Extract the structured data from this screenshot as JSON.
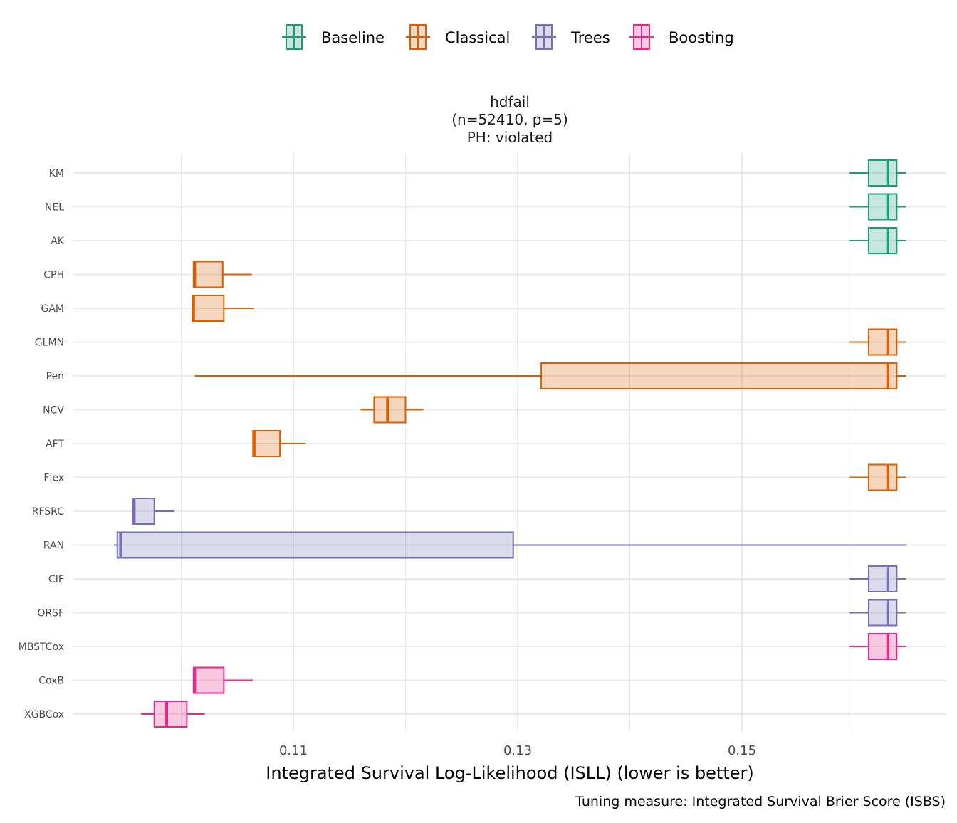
{
  "chart_data": {
    "type": "boxplot",
    "title_lines": [
      "hdfail",
      "(n=52410, p=5)",
      "PH: violated"
    ],
    "xlabel": "Integrated Survival Log-Likelihood (ISLL) (lower is better)",
    "caption": "Tuning measure: Integrated Survival Brier Score (ISBS)",
    "xlim": [
      0.0903,
      0.1681
    ],
    "x_ticks": [
      0.11,
      0.13,
      0.15
    ],
    "x_tick_labels": [
      "0.11",
      "0.13",
      "0.15"
    ],
    "x_minor_grid": [
      0.1,
      0.12,
      0.14,
      0.16
    ],
    "grid": true,
    "legend_position": "top",
    "groups": [
      {
        "name": "Baseline",
        "color": "#1B9E77"
      },
      {
        "name": "Classical",
        "color": "#D95F02"
      },
      {
        "name": "Trees",
        "color": "#7570B3"
      },
      {
        "name": "Boosting",
        "color": "#E7298A"
      }
    ],
    "series": [
      {
        "name": "KM",
        "group": "Baseline",
        "min": 0.1596,
        "q1": 0.1613,
        "median": 0.163,
        "q3": 0.1638,
        "max": 0.1646
      },
      {
        "name": "NEL",
        "group": "Baseline",
        "min": 0.1596,
        "q1": 0.1613,
        "median": 0.163,
        "q3": 0.1638,
        "max": 0.1646
      },
      {
        "name": "AK",
        "group": "Baseline",
        "min": 0.1596,
        "q1": 0.1613,
        "median": 0.163,
        "q3": 0.1638,
        "max": 0.1646
      },
      {
        "name": "CPH",
        "group": "Classical",
        "min": 0.1011,
        "q1": 0.1011,
        "median": 0.1012,
        "q3": 0.1037,
        "max": 0.1063
      },
      {
        "name": "GAM",
        "group": "Classical",
        "min": 0.101,
        "q1": 0.101,
        "median": 0.1011,
        "q3": 0.1038,
        "max": 0.1065
      },
      {
        "name": "GLMN",
        "group": "Classical",
        "min": 0.1596,
        "q1": 0.1613,
        "median": 0.163,
        "q3": 0.1638,
        "max": 0.1646
      },
      {
        "name": "Pen",
        "group": "Classical",
        "min": 0.1012,
        "q1": 0.1321,
        "median": 0.163,
        "q3": 0.1638,
        "max": 0.1646
      },
      {
        "name": "NCV",
        "group": "Classical",
        "min": 0.116,
        "q1": 0.1172,
        "median": 0.1184,
        "q3": 0.12,
        "max": 0.1216
      },
      {
        "name": "AFT",
        "group": "Classical",
        "min": 0.1064,
        "q1": 0.1064,
        "median": 0.1065,
        "q3": 0.1088,
        "max": 0.1111
      },
      {
        "name": "Flex",
        "group": "Classical",
        "min": 0.1596,
        "q1": 0.1613,
        "median": 0.163,
        "q3": 0.1638,
        "max": 0.1646
      },
      {
        "name": "RFSRC",
        "group": "Trees",
        "min": 0.0957,
        "q1": 0.0957,
        "median": 0.0958,
        "q3": 0.0976,
        "max": 0.0994
      },
      {
        "name": "RAN",
        "group": "Trees",
        "min": 0.094,
        "q1": 0.0943,
        "median": 0.0946,
        "q3": 0.1296,
        "max": 0.1647
      },
      {
        "name": "CIF",
        "group": "Trees",
        "min": 0.1596,
        "q1": 0.1613,
        "median": 0.163,
        "q3": 0.1638,
        "max": 0.1646
      },
      {
        "name": "ORSF",
        "group": "Trees",
        "min": 0.1596,
        "q1": 0.1613,
        "median": 0.163,
        "q3": 0.1638,
        "max": 0.1646
      },
      {
        "name": "MBSTCox",
        "group": "Boosting",
        "min": 0.1596,
        "q1": 0.1613,
        "median": 0.163,
        "q3": 0.1638,
        "max": 0.1646
      },
      {
        "name": "CoxB",
        "group": "Boosting",
        "min": 0.1011,
        "q1": 0.1011,
        "median": 0.1012,
        "q3": 0.1038,
        "max": 0.1064
      },
      {
        "name": "XGBCox",
        "group": "Boosting",
        "min": 0.0964,
        "q1": 0.0976,
        "median": 0.0987,
        "q3": 0.1005,
        "max": 0.1021
      }
    ]
  }
}
